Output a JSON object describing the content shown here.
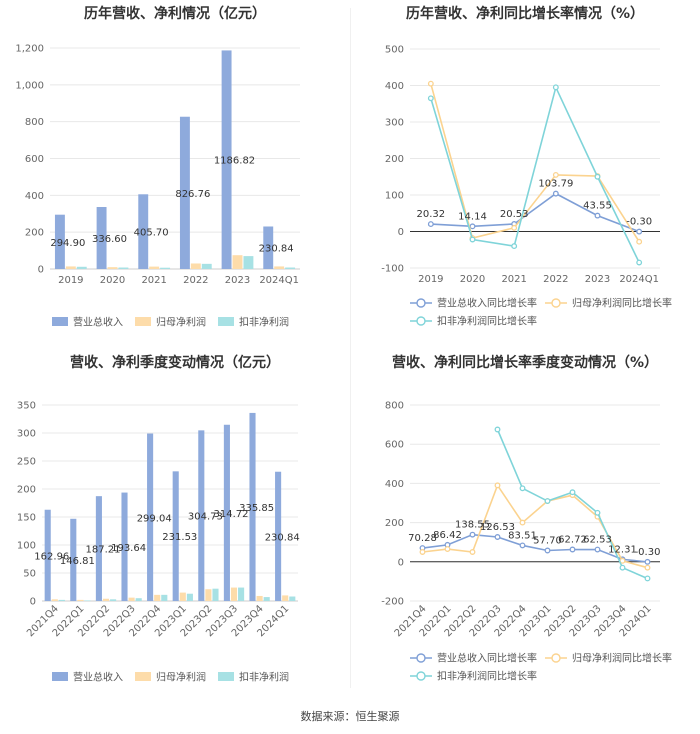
{
  "footer": "数据来源：恒生聚源",
  "colors": {
    "revenue": "#8eaadc",
    "parent": "#fddcaa",
    "deducted": "#a7e1e4",
    "line_rev": "#7f9fd6",
    "line_parent": "#fbd38f",
    "line_deducted": "#7fd4d9"
  },
  "chart_data": [
    {
      "id": "annual_amounts",
      "type": "bar",
      "title": "历年营收、净利情况（亿元）",
      "categories": [
        "2019",
        "2020",
        "2021",
        "2022",
        "2023",
        "2024Q1"
      ],
      "ylim": [
        0,
        1200
      ],
      "yticks": [
        0,
        200,
        400,
        600,
        800,
        1000,
        1200
      ],
      "ytick_labels": [
        "0",
        "200",
        "400",
        "600",
        "800",
        "1,000",
        "1,200"
      ],
      "series": [
        {
          "name": "营业总收入",
          "color": "#8eaadc",
          "values": [
            294.9,
            336.6,
            405.7,
            826.76,
            1186.82,
            230.84
          ],
          "labels": [
            "294.90",
            "336.60",
            "405.70",
            "826.76",
            "1186.82",
            "230.84"
          ]
        },
        {
          "name": "归母净利润",
          "color": "#fddcaa",
          "values": [
            14,
            10,
            13,
            30,
            75,
            14
          ]
        },
        {
          "name": "扣非净利润",
          "color": "#a7e1e4",
          "values": [
            12,
            8,
            7,
            28,
            70,
            8
          ]
        }
      ]
    },
    {
      "id": "annual_growth",
      "type": "line",
      "title": "历年营收、净利同比增长率情况（%）",
      "categories": [
        "2019",
        "2020",
        "2021",
        "2022",
        "2023",
        "2024Q1"
      ],
      "ylim": [
        -100,
        500
      ],
      "yticks": [
        -100,
        0,
        100,
        200,
        300,
        400,
        500
      ],
      "ytick_labels": [
        "-100",
        "0",
        "100",
        "200",
        "300",
        "400",
        "500"
      ],
      "series": [
        {
          "name": "营业总收入同比增长率",
          "color": "#7f9fd6",
          "values": [
            20.32,
            14.14,
            20.53,
            103.79,
            43.55,
            -0.3
          ],
          "labels": [
            "20.32",
            "14.14",
            "20.53",
            "103.79",
            "43.55",
            "-0.30"
          ]
        },
        {
          "name": "归母净利润同比增长率",
          "color": "#fbd38f",
          "values": [
            405,
            -18,
            10,
            155,
            152,
            -28
          ]
        },
        {
          "name": "扣非净利润同比增长率",
          "color": "#7fd4d9",
          "values": [
            365,
            -22,
            -40,
            395,
            150,
            -85
          ]
        }
      ]
    },
    {
      "id": "quarterly_amounts",
      "type": "bar",
      "title": "营收、净利季度变动情况（亿元）",
      "categories": [
        "2021Q4",
        "2022Q1",
        "2022Q2",
        "2022Q3",
        "2022Q4",
        "2023Q1",
        "2023Q2",
        "2023Q3",
        "2023Q4",
        "2024Q1"
      ],
      "ylim": [
        0,
        350
      ],
      "yticks": [
        0,
        50,
        100,
        150,
        200,
        250,
        300,
        350
      ],
      "ytick_labels": [
        "0",
        "50",
        "100",
        "150",
        "200",
        "250",
        "300",
        "350"
      ],
      "series": [
        {
          "name": "营业总收入",
          "color": "#8eaadc",
          "values": [
            162.96,
            146.81,
            187.21,
            193.64,
            299.04,
            231.53,
            304.73,
            314.72,
            335.85,
            230.84
          ],
          "labels": [
            "162.96",
            "146.81",
            "187.21",
            "193.64",
            "299.04",
            "231.53",
            "304.73",
            "314.72",
            "335.85",
            "230.84"
          ]
        },
        {
          "name": "归母净利润",
          "color": "#fddcaa",
          "values": [
            3,
            2,
            4,
            6,
            11,
            15,
            21,
            24,
            9,
            10
          ]
        },
        {
          "name": "扣非净利润",
          "color": "#a7e1e4",
          "values": [
            2,
            1,
            3,
            5,
            11,
            13,
            22,
            24,
            7,
            8
          ]
        }
      ]
    },
    {
      "id": "quarterly_growth",
      "type": "line",
      "title": "营收、净利同比增长率季度变动情况（%）",
      "categories": [
        "2021Q4",
        "2022Q1",
        "2022Q2",
        "2022Q3",
        "2022Q4",
        "2023Q1",
        "2023Q2",
        "2023Q3",
        "2023Q4",
        "2024Q1"
      ],
      "ylim": [
        -200,
        800
      ],
      "yticks": [
        -200,
        0,
        200,
        400,
        600,
        800
      ],
      "ytick_labels": [
        "-200",
        "0",
        "200",
        "400",
        "600",
        "800"
      ],
      "series": [
        {
          "name": "营业总收入同比增长率",
          "color": "#7f9fd6",
          "values": [
            70.28,
            86.42,
            138.55,
            126.53,
            83.51,
            57.7,
            62.72,
            62.53,
            12.31,
            -0.3
          ],
          "labels": [
            "70.28",
            "86.42",
            "138.55",
            "126.53",
            "83.51",
            "57.70",
            "62.72",
            "62.53",
            "12.31",
            "-0.30"
          ]
        },
        {
          "name": "归母净利润同比增长率",
          "color": "#fbd38f",
          "values": [
            50,
            65,
            50,
            390,
            200,
            310,
            340,
            230,
            5,
            -30
          ]
        },
        {
          "name": "扣非净利润同比增长率",
          "color": "#7fd4d9",
          "values": [
            null,
            null,
            null,
            675,
            375,
            310,
            355,
            250,
            -30,
            -85
          ]
        }
      ]
    }
  ]
}
